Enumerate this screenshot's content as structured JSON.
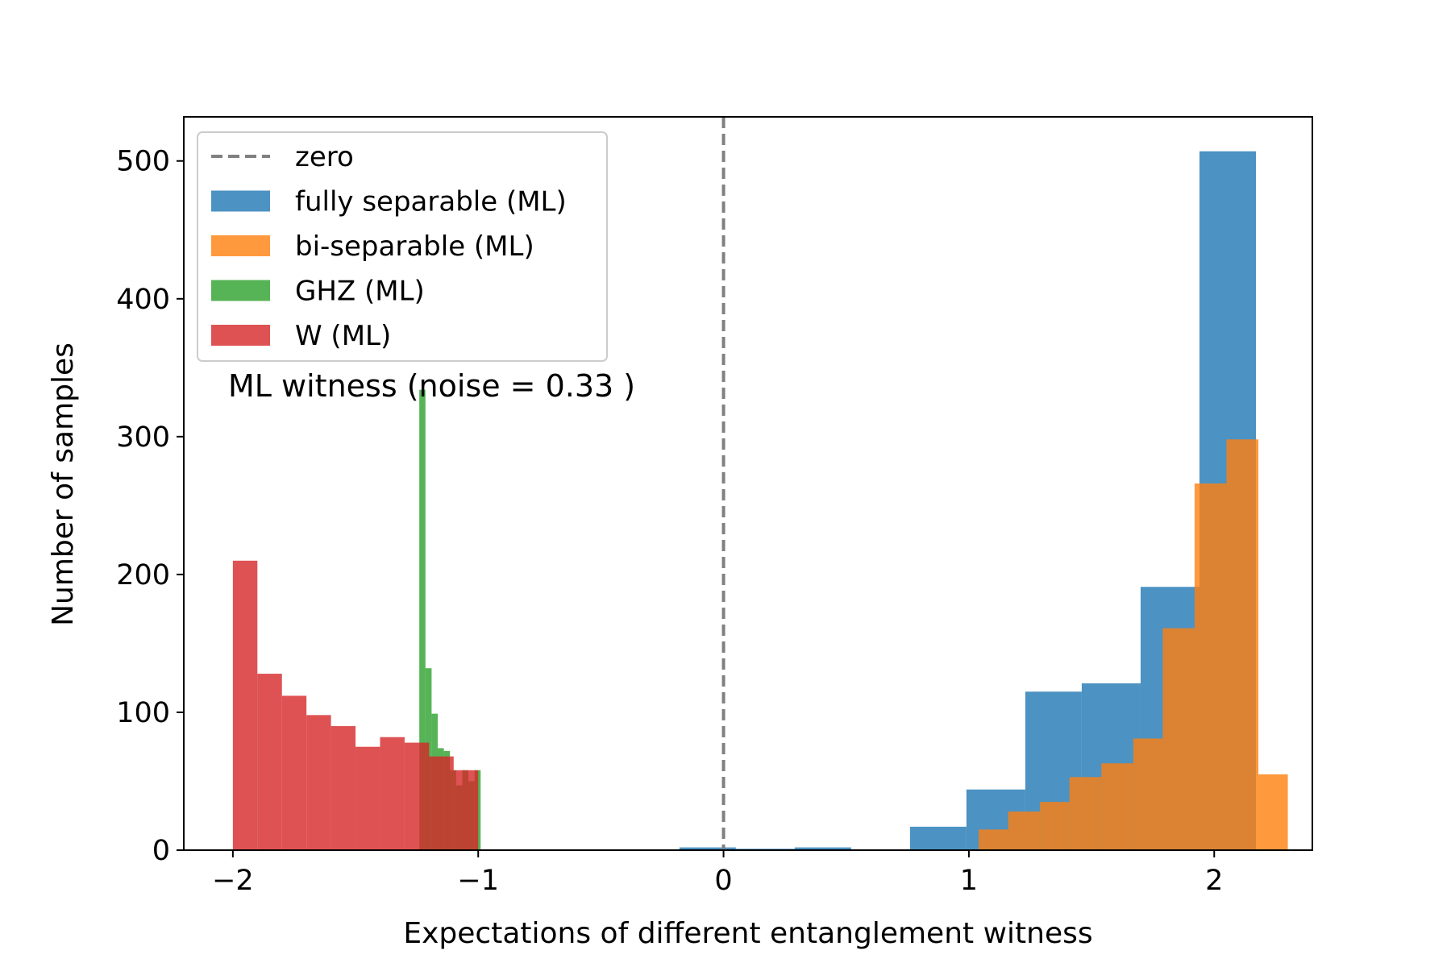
{
  "chart_data": {
    "type": "histogram",
    "xlabel": "Expectations of different entanglement witness",
    "ylabel": "Number of samples",
    "xlim": [
      -2.2,
      2.4
    ],
    "ylim": [
      0,
      532
    ],
    "xticks": [
      -2,
      -1,
      0,
      1,
      2
    ],
    "xtick_labels": [
      "−2",
      "−1",
      "0",
      "1",
      "2"
    ],
    "yticks": [
      0,
      100,
      200,
      300,
      400,
      500
    ],
    "ytick_labels": [
      "0",
      "100",
      "200",
      "300",
      "400",
      "500"
    ],
    "annotation": "ML witness (noise = 0.33 )",
    "reference_line": {
      "label": "zero",
      "x": 0,
      "color": "#808080",
      "style": "dashed"
    },
    "legend": {
      "position": "top-left"
    },
    "series": [
      {
        "name": "fully separable (ML)",
        "color": "#1f77b4",
        "opacity": 0.8,
        "bins": [
          {
            "x0": -0.18,
            "x1": 0.05,
            "y": 2
          },
          {
            "x0": 0.05,
            "x1": 0.29,
            "y": 1
          },
          {
            "x0": 0.29,
            "x1": 0.52,
            "y": 2
          },
          {
            "x0": 0.52,
            "x1": 0.76,
            "y": 0
          },
          {
            "x0": 0.76,
            "x1": 0.99,
            "y": 17
          },
          {
            "x0": 0.99,
            "x1": 1.23,
            "y": 44
          },
          {
            "x0": 1.23,
            "x1": 1.46,
            "y": 115
          },
          {
            "x0": 1.46,
            "x1": 1.7,
            "y": 121
          },
          {
            "x0": 1.7,
            "x1": 1.94,
            "y": 191
          },
          {
            "x0": 1.94,
            "x1": 2.17,
            "y": 507
          }
        ]
      },
      {
        "name": "bi-separable (ML)",
        "color": "#ff7f0e",
        "opacity": 0.8,
        "bins": [
          {
            "x0": 1.04,
            "x1": 1.16,
            "y": 15
          },
          {
            "x0": 1.16,
            "x1": 1.29,
            "y": 28
          },
          {
            "x0": 1.29,
            "x1": 1.41,
            "y": 35
          },
          {
            "x0": 1.41,
            "x1": 1.54,
            "y": 53
          },
          {
            "x0": 1.54,
            "x1": 1.67,
            "y": 63
          },
          {
            "x0": 1.67,
            "x1": 1.79,
            "y": 81
          },
          {
            "x0": 1.79,
            "x1": 1.92,
            "y": 161
          },
          {
            "x0": 1.92,
            "x1": 2.05,
            "y": 266
          },
          {
            "x0": 2.05,
            "x1": 2.18,
            "y": 298
          },
          {
            "x0": 2.18,
            "x1": 2.3,
            "y": 55
          }
        ]
      },
      {
        "name": "GHZ (ML)",
        "color": "#2ca02c",
        "opacity": 0.8,
        "bins": [
          {
            "x0": -1.24,
            "x1": -1.215,
            "y": 334
          },
          {
            "x0": -1.215,
            "x1": -1.19,
            "y": 132
          },
          {
            "x0": -1.19,
            "x1": -1.165,
            "y": 99
          },
          {
            "x0": -1.165,
            "x1": -1.14,
            "y": 74
          },
          {
            "x0": -1.14,
            "x1": -1.115,
            "y": 72
          },
          {
            "x0": -1.115,
            "x1": -1.09,
            "y": 58
          },
          {
            "x0": -1.09,
            "x1": -1.065,
            "y": 47
          },
          {
            "x0": -1.065,
            "x1": -1.04,
            "y": 58
          },
          {
            "x0": -1.04,
            "x1": -1.015,
            "y": 50
          },
          {
            "x0": -1.015,
            "x1": -0.99,
            "y": 58
          }
        ]
      },
      {
        "name": "W (ML)",
        "color": "#d62728",
        "opacity": 0.8,
        "bins": [
          {
            "x0": -2.0,
            "x1": -1.9,
            "y": 210
          },
          {
            "x0": -1.9,
            "x1": -1.8,
            "y": 128
          },
          {
            "x0": -1.8,
            "x1": -1.7,
            "y": 112
          },
          {
            "x0": -1.7,
            "x1": -1.6,
            "y": 98
          },
          {
            "x0": -1.6,
            "x1": -1.5,
            "y": 90
          },
          {
            "x0": -1.5,
            "x1": -1.4,
            "y": 75
          },
          {
            "x0": -1.4,
            "x1": -1.3,
            "y": 82
          },
          {
            "x0": -1.3,
            "x1": -1.2,
            "y": 78
          },
          {
            "x0": -1.2,
            "x1": -1.1,
            "y": 68
          },
          {
            "x0": -1.1,
            "x1": -1.0,
            "y": 58
          }
        ]
      }
    ]
  }
}
